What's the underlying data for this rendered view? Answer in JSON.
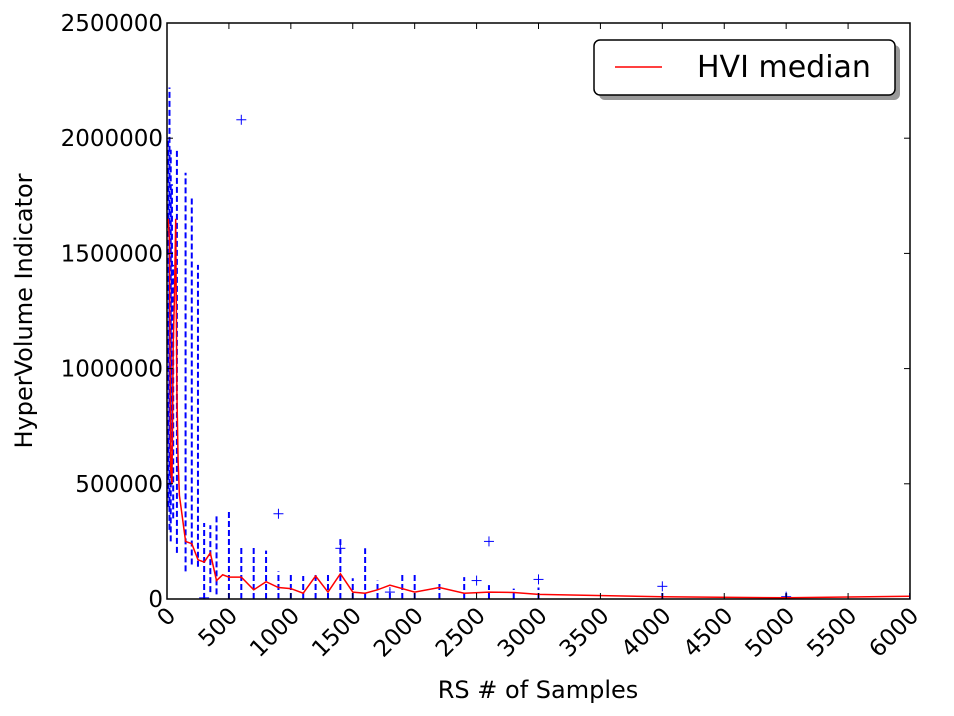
{
  "chart_data": {
    "type": "line",
    "xlabel": "RS # of Samples",
    "ylabel": "HyperVolume Indicator",
    "xlim": [
      0,
      6000
    ],
    "ylim": [
      0,
      2500000
    ],
    "x_ticks": [
      "0",
      "500",
      "1000",
      "1500",
      "2000",
      "2500",
      "3000",
      "3500",
      "4000",
      "4500",
      "5000",
      "5500",
      "6000"
    ],
    "y_ticks": [
      "0",
      "500000",
      "1000000",
      "1500000",
      "2000000",
      "2500000"
    ],
    "legend_position": "top-right",
    "grid": false,
    "series": [
      {
        "name": "HVI median",
        "color": "#ff0000",
        "x": [
          10,
          20,
          30,
          40,
          50,
          60,
          70,
          80,
          90,
          100,
          150,
          200,
          250,
          300,
          350,
          400,
          450,
          500,
          600,
          700,
          800,
          900,
          1000,
          1100,
          1200,
          1300,
          1400,
          1500,
          1600,
          1700,
          1800,
          2000,
          2200,
          2400,
          2600,
          2800,
          3000,
          4000,
          5000,
          6000
        ],
        "y": [
          1650000,
          1550000,
          560000,
          500000,
          1100000,
          1300000,
          1650000,
          900000,
          600000,
          450000,
          250000,
          240000,
          170000,
          160000,
          200000,
          80000,
          105000,
          95000,
          95000,
          40000,
          75000,
          50000,
          45000,
          25000,
          100000,
          30000,
          110000,
          30000,
          25000,
          40000,
          60000,
          30000,
          50000,
          25000,
          30000,
          28000,
          20000,
          10000,
          5000,
          12000
        ]
      },
      {
        "name": "",
        "type": "boxplot-whiskers",
        "color": "#0000ff",
        "boxes": [
          {
            "x": 10,
            "low": 400000,
            "high": 2000000
          },
          {
            "x": 20,
            "low": 300000,
            "high": 2220000
          },
          {
            "x": 30,
            "low": 250000,
            "high": 1950000
          },
          {
            "x": 40,
            "low": 700000,
            "high": 1800000
          },
          {
            "x": 50,
            "low": 350000,
            "high": 1450000
          },
          {
            "x": 80,
            "low": 200000,
            "high": 1950000
          },
          {
            "x": 150,
            "low": 120000,
            "high": 1850000
          },
          {
            "x": 200,
            "low": 150000,
            "high": 1750000
          },
          {
            "x": 250,
            "low": 140000,
            "high": 1450000
          },
          {
            "x": 300,
            "low": 0,
            "high": 330000
          },
          {
            "x": 350,
            "low": 30000,
            "high": 320000
          },
          {
            "x": 400,
            "low": 20000,
            "high": 360000
          },
          {
            "x": 500,
            "low": 0,
            "high": 390000
          },
          {
            "x": 600,
            "low": 0,
            "high": 230000
          },
          {
            "x": 700,
            "low": 0,
            "high": 230000
          },
          {
            "x": 800,
            "low": 0,
            "high": 210000
          },
          {
            "x": 900,
            "low": 0,
            "high": 120000
          },
          {
            "x": 1000,
            "low": 0,
            "high": 110000
          },
          {
            "x": 1100,
            "low": 0,
            "high": 100000
          },
          {
            "x": 1200,
            "low": 0,
            "high": 115000
          },
          {
            "x": 1300,
            "low": 0,
            "high": 110000
          },
          {
            "x": 1400,
            "low": 0,
            "high": 260000
          },
          {
            "x": 1500,
            "low": 0,
            "high": 90000
          },
          {
            "x": 1600,
            "low": 0,
            "high": 220000
          },
          {
            "x": 1700,
            "low": 0,
            "high": 80000
          },
          {
            "x": 1800,
            "low": 0,
            "high": 40000
          },
          {
            "x": 1900,
            "low": 0,
            "high": 105000
          },
          {
            "x": 2000,
            "low": 0,
            "high": 110000
          },
          {
            "x": 2200,
            "low": 0,
            "high": 70000
          },
          {
            "x": 2400,
            "low": 0,
            "high": 95000
          },
          {
            "x": 2600,
            "low": 0,
            "high": 60000
          },
          {
            "x": 2800,
            "low": 0,
            "high": 45000
          },
          {
            "x": 3000,
            "low": 0,
            "high": 50000
          },
          {
            "x": 4000,
            "low": 0,
            "high": 30000
          },
          {
            "x": 5000,
            "low": 0,
            "high": 25000
          },
          {
            "x": 6000,
            "low": 0,
            "high": 30000
          }
        ],
        "outliers": [
          {
            "x": 600,
            "y": 2080000
          },
          {
            "x": 900,
            "y": 370000
          },
          {
            "x": 1400,
            "y": 220000
          },
          {
            "x": 2600,
            "y": 250000
          },
          {
            "x": 2500,
            "y": 80000
          },
          {
            "x": 3000,
            "y": 85000
          },
          {
            "x": 4000,
            "y": 55000
          },
          {
            "x": 300,
            "y": 5000
          },
          {
            "x": 1800,
            "y": 30000
          },
          {
            "x": 5000,
            "y": 10000
          }
        ]
      }
    ]
  }
}
